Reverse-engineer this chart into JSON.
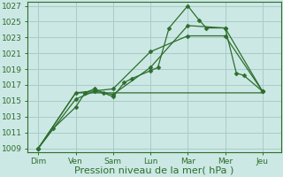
{
  "background_color": "#cce8e4",
  "grid_color": "#a8ccc8",
  "line_color": "#2d6e2d",
  "xlabel": "Pression niveau de la mer( hPa )",
  "xlabels": [
    "Dim",
    "Ven",
    "Sam",
    "Lun",
    "Mar",
    "Mer",
    "Jeu"
  ],
  "ylim": [
    1008.5,
    1027.5
  ],
  "yticks": [
    1009,
    1011,
    1013,
    1015,
    1017,
    1019,
    1021,
    1023,
    1025,
    1027
  ],
  "series": [
    {
      "x": [
        0,
        0.4,
        1.0,
        1.25,
        1.5,
        1.75,
        2.0,
        2.3,
        2.5,
        3.0,
        3.2,
        3.5,
        4.0,
        4.3,
        4.5,
        5.0,
        5.3,
        5.5,
        6.0
      ],
      "y": [
        1009,
        1011.5,
        1014.2,
        1016,
        1016.5,
        1016,
        1015.5,
        1017.3,
        1017.8,
        1018.8,
        1019.2,
        1024.2,
        1027,
        1025.2,
        1024.2,
        1024.2,
        1018.5,
        1018.2,
        1016.2
      ],
      "marker": "D",
      "markersize": 2.5,
      "lw": 0.9
    },
    {
      "x": [
        0,
        1.0,
        1.5,
        2.0,
        3.0,
        4.0,
        5.0,
        6.0
      ],
      "y": [
        1009,
        1015.2,
        1016.2,
        1015.8,
        1019.2,
        1024.5,
        1024.2,
        1016.2
      ],
      "marker": "D",
      "markersize": 2.5,
      "lw": 0.9
    },
    {
      "x": [
        0,
        1.0,
        2.0,
        3.0,
        4.0,
        5.0,
        6.0
      ],
      "y": [
        1009,
        1016,
        1016,
        1016,
        1016,
        1016,
        1016
      ],
      "marker": null,
      "markersize": 0,
      "lw": 0.9
    },
    {
      "x": [
        0,
        1.0,
        2.0,
        3.0,
        4.0,
        5.0,
        6.0
      ],
      "y": [
        1009,
        1016,
        1016.5,
        1021.2,
        1023.2,
        1023.2,
        1016.2
      ],
      "marker": "D",
      "markersize": 2.5,
      "lw": 0.9
    }
  ],
  "xtick_positions": [
    0,
    1,
    2,
    3,
    4,
    5,
    6
  ],
  "font_color": "#2d6e2d",
  "xlabel_fontsize": 8,
  "tick_fontsize": 6.5
}
